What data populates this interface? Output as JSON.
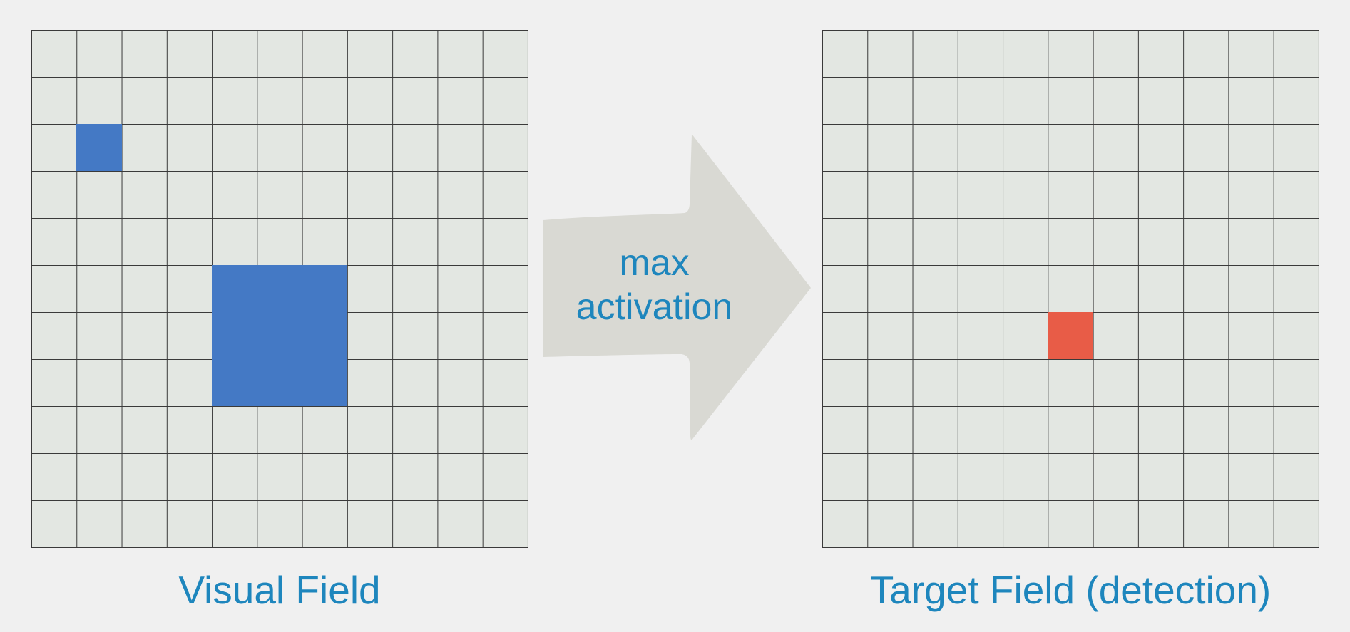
{
  "diagram": {
    "arrow_label_line1": "max",
    "arrow_label_line2": "activation",
    "left_caption": "Visual Field",
    "right_caption": "Target Field (detection)"
  },
  "colors": {
    "grid_fill": "#e3e7e2",
    "grid_line": "#3a3a3a",
    "object": "#4479c5",
    "detection": "#e85c47",
    "arrow": "#d9d9d3",
    "text": "#1e86bd"
  }
}
